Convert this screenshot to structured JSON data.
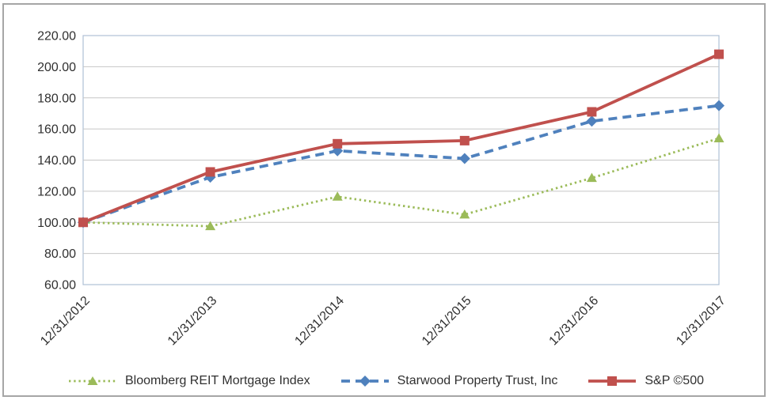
{
  "chart_data": {
    "type": "line",
    "categories": [
      "12/31/2012",
      "12/31/2013",
      "12/31/2014",
      "12/31/2015",
      "12/31/2016",
      "12/31/2017"
    ],
    "series": [
      {
        "name": "Bloomberg REIT Mortgage Index",
        "color": "#9BBB59",
        "line_style": "dotted",
        "marker": "triangle",
        "values": [
          100.0,
          97.5,
          116.5,
          105.0,
          128.5,
          154.0
        ]
      },
      {
        "name": "Starwood Property Trust, Inc",
        "color": "#4F81BD",
        "line_style": "dashed",
        "marker": "diamond",
        "values": [
          100.0,
          129.0,
          146.0,
          141.0,
          165.0,
          175.0
        ]
      },
      {
        "name": "S&P ©500",
        "color": "#C0504D",
        "line_style": "solid",
        "marker": "square",
        "values": [
          100.0,
          132.4,
          150.5,
          152.5,
          171.0,
          208.0
        ]
      }
    ],
    "y_axis": {
      "min": 60,
      "max": 220,
      "step": 20,
      "tick_labels": [
        "220.00",
        "200.00",
        "180.00",
        "160.00",
        "140.00",
        "120.00",
        "100.00",
        "80.00",
        "60.00"
      ]
    },
    "x_axis": {
      "tick_rotation": -45
    },
    "grid": true,
    "legend_position": "bottom",
    "colors": {
      "gridline": "#C6C6C6",
      "plot_border": "#AFC0D5",
      "frame_border": "#A6A6A6",
      "text": "#303030",
      "background": "#FFFFFF"
    }
  }
}
